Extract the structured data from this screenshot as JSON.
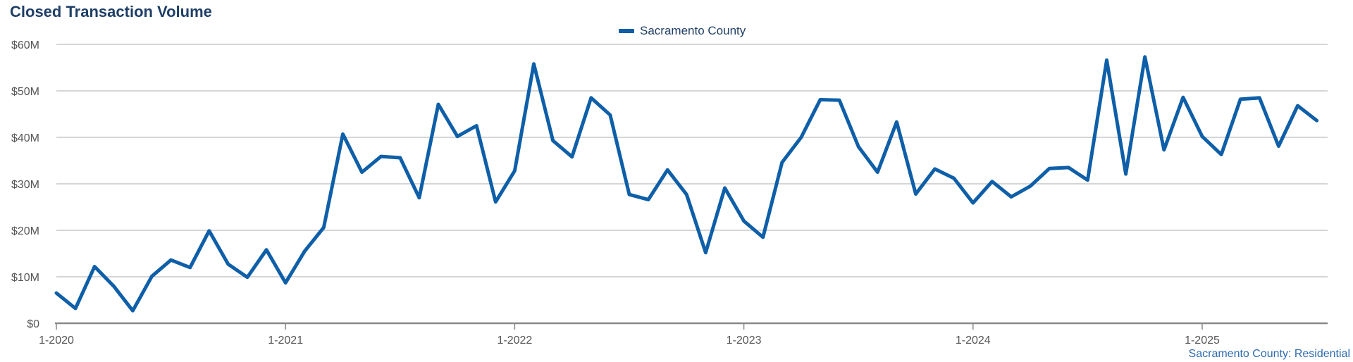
{
  "chart_data": {
    "type": "line",
    "title": "Closed Transaction Volume",
    "legend": {
      "position": "top-center"
    },
    "source_label": "Sacramento County: Residential",
    "colors": {
      "series": "#0e5fa8",
      "grid": "#c8c8c8",
      "axis": "#888888",
      "title": "#1f3f66"
    },
    "y_axis": {
      "min": 0,
      "max": 60000000,
      "ticks": [
        0,
        10000000,
        20000000,
        30000000,
        40000000,
        50000000,
        60000000
      ],
      "tick_labels": [
        "$0",
        "$10M",
        "$20M",
        "$30M",
        "$40M",
        "$50M",
        "$60M"
      ]
    },
    "x_axis": {
      "tick_labels": [
        "1-2020",
        "1-2021",
        "1-2022",
        "1-2023",
        "1-2024",
        "1-2025"
      ],
      "tick_indices": [
        0,
        12,
        24,
        36,
        48,
        60
      ]
    },
    "grid": true,
    "x": [
      "1-2020",
      "2-2020",
      "3-2020",
      "4-2020",
      "5-2020",
      "6-2020",
      "7-2020",
      "8-2020",
      "9-2020",
      "10-2020",
      "11-2020",
      "12-2020",
      "1-2021",
      "2-2021",
      "3-2021",
      "4-2021",
      "5-2021",
      "6-2021",
      "7-2021",
      "8-2021",
      "9-2021",
      "10-2021",
      "11-2021",
      "12-2021",
      "1-2022",
      "2-2022",
      "3-2022",
      "4-2022",
      "5-2022",
      "6-2022",
      "7-2022",
      "8-2022",
      "9-2022",
      "10-2022",
      "11-2022",
      "12-2022",
      "1-2023",
      "2-2023",
      "3-2023",
      "4-2023",
      "5-2023",
      "6-2023",
      "7-2023",
      "8-2023",
      "9-2023",
      "10-2023",
      "11-2023",
      "12-2023",
      "1-2024",
      "2-2024",
      "3-2024",
      "4-2024",
      "5-2024",
      "6-2024",
      "7-2024",
      "8-2024",
      "9-2024",
      "10-2024",
      "11-2024",
      "12-2024",
      "1-2025",
      "2-2025",
      "3-2025",
      "4-2025",
      "5-2025",
      "6-2025",
      "7-2025"
    ],
    "series": [
      {
        "name": "Sacramento County",
        "values": [
          6.5,
          3.2,
          12.2,
          8.0,
          2.7,
          10.1,
          13.6,
          12.0,
          19.9,
          12.7,
          9.9,
          15.8,
          8.7,
          15.5,
          20.6,
          40.7,
          32.5,
          35.9,
          35.6,
          27.0,
          47.1,
          40.2,
          42.5,
          26.1,
          32.8,
          55.8,
          39.3,
          35.8,
          48.5,
          44.8,
          27.7,
          26.6,
          33.0,
          27.7,
          15.2,
          29.1,
          22.0,
          18.5,
          34.6,
          40.0,
          48.1,
          48.0,
          38.0,
          32.5,
          43.3,
          27.8,
          33.2,
          31.2,
          25.9,
          30.5,
          27.2,
          29.5,
          33.3,
          33.5,
          30.8,
          56.6,
          32.1,
          57.3,
          37.3,
          48.6,
          40.2,
          36.3,
          48.2,
          48.5,
          38.1,
          46.8,
          43.6
        ]
      }
    ]
  }
}
